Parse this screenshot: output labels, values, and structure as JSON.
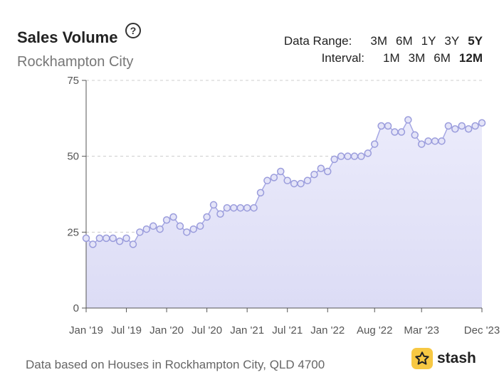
{
  "header": {
    "title": "Sales Volume",
    "help_icon": "?",
    "subtitle": "Rockhampton City"
  },
  "controls": {
    "range_label": "Data Range:",
    "ranges": [
      "3M",
      "6M",
      "1Y",
      "3Y",
      "5Y"
    ],
    "range_selected": "5Y",
    "interval_label": "Interval:",
    "intervals": [
      "1M",
      "3M",
      "6M",
      "12M"
    ],
    "interval_selected": "12M"
  },
  "footer": {
    "note": "Data based on Houses in Rockhampton City, QLD 4700",
    "logo_text": "stash"
  },
  "colors": {
    "line": "#a6a8e4",
    "fill_top": "#ebebfb",
    "fill_bottom": "#dcdcf5",
    "point_fill": "#e4e4f8",
    "point_stroke": "#9a9cdc",
    "grid": "#cccccc",
    "axis": "#555555",
    "brand": "#f7c843"
  },
  "chart_data": {
    "type": "area",
    "title": "Sales Volume",
    "xlabel": "",
    "ylabel": "",
    "ylim": [
      0,
      75
    ],
    "y_ticks": [
      0,
      25,
      50,
      75
    ],
    "x_tick_labels": [
      "Jan '19",
      "Jul '19",
      "Jan '20",
      "Jul '20",
      "Jan '21",
      "Jul '21",
      "Jan '22",
      "Aug '22",
      "Mar '23",
      "Dec '23"
    ],
    "x_tick_month_index": [
      0,
      6,
      12,
      18,
      24,
      30,
      36,
      43,
      50,
      59
    ],
    "grid": true,
    "series": [
      {
        "months": [
          "2019-01",
          "2019-02",
          "2019-03",
          "2019-04",
          "2019-05",
          "2019-06",
          "2019-07",
          "2019-08",
          "2019-09",
          "2019-10",
          "2019-11",
          "2019-12",
          "2020-01",
          "2020-02",
          "2020-03",
          "2020-04",
          "2020-05",
          "2020-06",
          "2020-07",
          "2020-08",
          "2020-09",
          "2020-10",
          "2020-11",
          "2020-12",
          "2021-01",
          "2021-02",
          "2021-03",
          "2021-04",
          "2021-05",
          "2021-06",
          "2021-07",
          "2021-08",
          "2021-09",
          "2021-10",
          "2021-11",
          "2021-12",
          "2022-01",
          "2022-02",
          "2022-03",
          "2022-04",
          "2022-05",
          "2022-06",
          "2022-07",
          "2022-08",
          "2022-09",
          "2022-10",
          "2022-11",
          "2022-12",
          "2023-01",
          "2023-02",
          "2023-03",
          "2023-04",
          "2023-05",
          "2023-06",
          "2023-07",
          "2023-08",
          "2023-09",
          "2023-10",
          "2023-11",
          "2023-12"
        ],
        "values": [
          23,
          21,
          23,
          23,
          23,
          22,
          23,
          21,
          25,
          26,
          27,
          26,
          29,
          30,
          27,
          25,
          26,
          27,
          30,
          34,
          31,
          33,
          33,
          33,
          33,
          33,
          38,
          42,
          43,
          45,
          42,
          41,
          41,
          42,
          44,
          46,
          45,
          49,
          50,
          50,
          50,
          50,
          51,
          54,
          60,
          60,
          58,
          58,
          62,
          57,
          54,
          55,
          55,
          55,
          60,
          59,
          60,
          59,
          60,
          61
        ]
      }
    ]
  }
}
